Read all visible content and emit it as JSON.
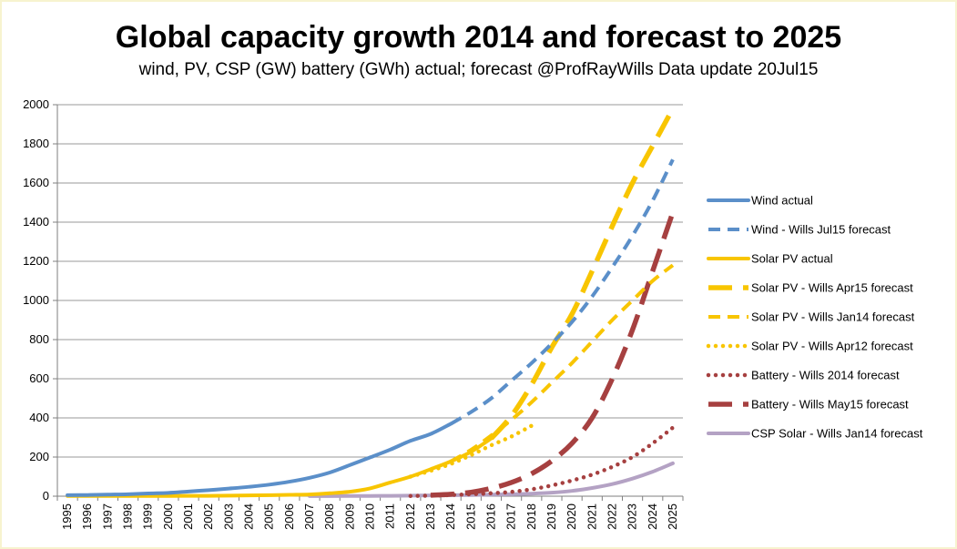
{
  "chart_data": {
    "type": "line",
    "title": "Global capacity growth 2014 and forecast to 2025",
    "subtitle": "wind, PV, CSP (GW) battery (GWh) actual; forecast @ProfRayWills  Data update 20Jul15",
    "xlabel": "",
    "ylabel": "",
    "categories": [
      "1995",
      "1996",
      "1997",
      "1998",
      "1999",
      "2000",
      "2001",
      "2002",
      "2003",
      "2004",
      "2005",
      "2006",
      "2007",
      "2008",
      "2009",
      "2010",
      "2011",
      "2012",
      "2013",
      "2014",
      "2015",
      "2016",
      "2017",
      "2018",
      "2019",
      "2020",
      "2021",
      "2022",
      "2023",
      "2024",
      "2025"
    ],
    "ylim": [
      0,
      2000
    ],
    "yticks": [
      0,
      200,
      400,
      600,
      800,
      1000,
      1200,
      1400,
      1600,
      1800,
      2000
    ],
    "grid": "horizontal",
    "legend_position": "right",
    "series": [
      {
        "name": "Wind actual",
        "color": "#5b8fc9",
        "style": "solid",
        "x": [
          1995,
          1996,
          1997,
          1998,
          1999,
          2000,
          2001,
          2002,
          2003,
          2004,
          2005,
          2006,
          2007,
          2008,
          2009,
          2010,
          2011,
          2012,
          2013,
          2014
        ],
        "values": [
          5,
          6,
          8,
          10,
          14,
          17,
          24,
          31,
          39,
          48,
          59,
          74,
          94,
          121,
          159,
          198,
          238,
          283,
          318,
          370
        ]
      },
      {
        "name": "Wind - Wills Jul15 forecast",
        "color": "#5b8fc9",
        "style": "dash",
        "x": [
          2014,
          2015,
          2016,
          2017,
          2018,
          2019,
          2020,
          2021,
          2022,
          2023,
          2024,
          2025
        ],
        "values": [
          370,
          430,
          500,
          590,
          680,
          780,
          890,
          1020,
          1170,
          1330,
          1510,
          1720
        ]
      },
      {
        "name": "Solar PV actual",
        "color": "#f8c500",
        "style": "solid",
        "x": [
          1995,
          1996,
          1997,
          1998,
          1999,
          2000,
          2001,
          2002,
          2003,
          2004,
          2005,
          2006,
          2007,
          2008,
          2009,
          2010,
          2011,
          2012,
          2013,
          2014,
          2015,
          2016
        ],
        "values": [
          1,
          1,
          1,
          1,
          1,
          1,
          2,
          2,
          3,
          4,
          5,
          7,
          9,
          15,
          23,
          40,
          70,
          100,
          138,
          178,
          227,
          295
        ]
      },
      {
        "name": "Solar PV - Wills Apr15 forecast",
        "color": "#f8c500",
        "style": "longdash",
        "x": [
          2016,
          2017,
          2018,
          2019,
          2020,
          2021,
          2022,
          2023,
          2024,
          2025
        ],
        "values": [
          295,
          410,
          570,
          760,
          930,
          1150,
          1380,
          1600,
          1790,
          1980
        ]
      },
      {
        "name": "Solar PV - Wills Jan14 forecast",
        "color": "#f8c500",
        "style": "dash",
        "x": [
          2014,
          2015,
          2016,
          2017,
          2018,
          2019,
          2020,
          2021,
          2022,
          2023,
          2024,
          2025
        ],
        "values": [
          178,
          237,
          310,
          390,
          480,
          580,
          680,
          790,
          900,
          1000,
          1100,
          1180
        ]
      },
      {
        "name": "Solar PV - Wills Apr12 forecast",
        "color": "#f8c500",
        "style": "dot",
        "x": [
          2012,
          2013,
          2014,
          2015,
          2016,
          2017,
          2018
        ],
        "values": [
          100,
          130,
          165,
          210,
          260,
          305,
          360
        ]
      },
      {
        "name": "Battery - Wills 2014 forecast",
        "color": "#a64040",
        "style": "dot",
        "x": [
          2012,
          2013,
          2014,
          2015,
          2016,
          2017,
          2018,
          2019,
          2020,
          2021,
          2022,
          2023,
          2024,
          2025
        ],
        "values": [
          1,
          3,
          6,
          10,
          15,
          22,
          35,
          55,
          80,
          110,
          150,
          200,
          270,
          350
        ]
      },
      {
        "name": "Battery - Wills May15 forecast",
        "color": "#a64040",
        "style": "longdash",
        "x": [
          2013,
          2014,
          2015,
          2016,
          2017,
          2018,
          2019,
          2020,
          2021,
          2022,
          2023,
          2024,
          2025
        ],
        "values": [
          5,
          10,
          20,
          40,
          70,
          115,
          180,
          270,
          400,
          600,
          850,
          1150,
          1450
        ]
      },
      {
        "name": "CSP Solar - Wills Jan14 forecast",
        "color": "#b4a2c4",
        "style": "solid",
        "x": [
          2007,
          2008,
          2009,
          2010,
          2011,
          2012,
          2013,
          2014,
          2015,
          2016,
          2017,
          2018,
          2019,
          2020,
          2021,
          2022,
          2023,
          2024,
          2025
        ],
        "values": [
          0.5,
          0.8,
          1,
          1.3,
          2,
          3,
          4,
          5,
          6,
          8,
          10,
          13,
          18,
          27,
          42,
          62,
          90,
          125,
          168
        ]
      }
    ]
  }
}
